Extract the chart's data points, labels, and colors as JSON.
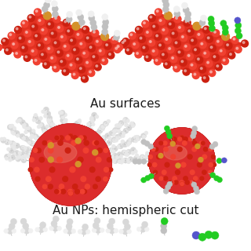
{
  "bg_color": "#ffffff",
  "text1": "Au surfaces",
  "text2": "Au NPs: hemispheric cut",
  "text_fontsize": 11,
  "text_color": "#1a1a1a",
  "au_red": "#e03020",
  "au_red2": "#cc2010",
  "au_red3": "#f04030",
  "au_orange": "#d4922a",
  "au_pink": "#e87060",
  "molecule_gray": "#c0c0c0",
  "molecule_gray2": "#d8d8d8",
  "molecule_white": "#f0f0f0",
  "molecule_green": "#22cc22",
  "molecule_blue": "#5555cc",
  "molecule_outline": "#888888",
  "slab_edge": "#ffffff",
  "bond_color": "#aaaaaa"
}
